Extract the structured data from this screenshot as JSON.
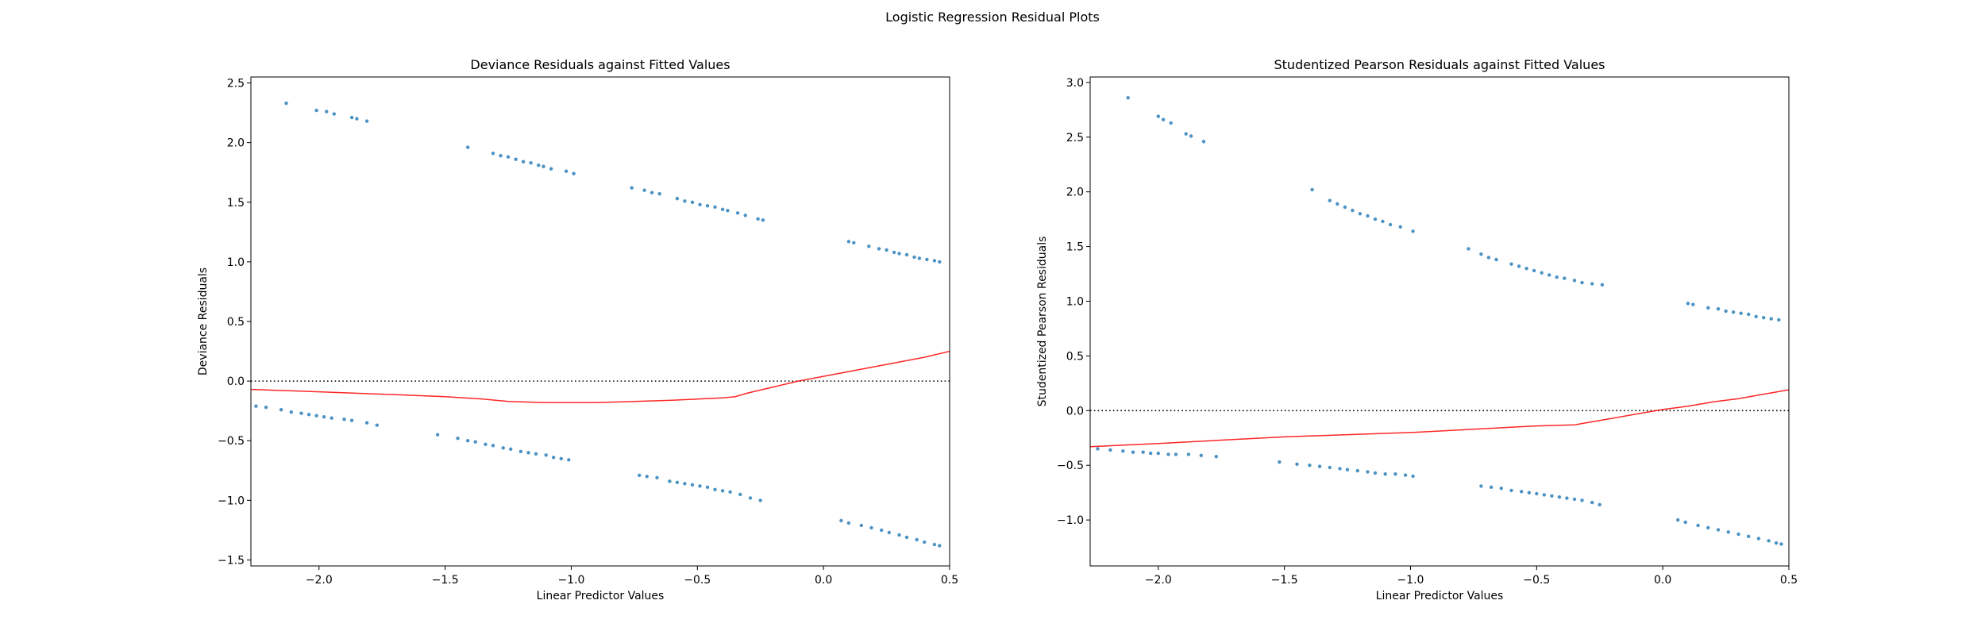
{
  "figure": {
    "suptitle": "Logistic Regression Residual Plots"
  },
  "colors": {
    "points": "#1f77b4",
    "smoother": "#ff0000",
    "zero_line": "#000000"
  },
  "chart_data": [
    {
      "type": "scatter",
      "title": "Deviance Residuals against Fitted Values",
      "xlabel": "Linear Predictor Values",
      "ylabel": "Deviance Residuals",
      "xlim": [
        -2.27,
        0.5
      ],
      "ylim": [
        -1.55,
        2.55
      ],
      "xticks": [
        -2.0,
        -1.5,
        -1.0,
        -0.5,
        0.0,
        0.5
      ],
      "xtick_labels": [
        "−2.0",
        "−1.5",
        "−1.0",
        "−0.5",
        "0.0",
        "0.5"
      ],
      "yticks": [
        -1.5,
        -1.0,
        -0.5,
        0.0,
        0.5,
        1.0,
        1.5,
        2.0,
        2.5
      ],
      "ytick_labels": [
        "−1.5",
        "−1.0",
        "−0.5",
        "0.0",
        "0.5",
        "1.0",
        "1.5",
        "2.0",
        "2.5"
      ],
      "zero_line": 0,
      "grid": false,
      "segments": [
        {
          "x": [
            -2.13,
            -2.01,
            -1.97,
            -1.94,
            -1.87,
            -1.85,
            -1.81
          ],
          "y": [
            2.33,
            2.27,
            2.26,
            2.24,
            2.21,
            2.2,
            2.18
          ]
        },
        {
          "x": [
            -1.41,
            -1.31,
            -1.28,
            -1.25,
            -1.22,
            -1.19,
            -1.16,
            -1.13,
            -1.11,
            -1.08,
            -1.02,
            -0.99
          ],
          "y": [
            1.96,
            1.91,
            1.89,
            1.88,
            1.86,
            1.84,
            1.83,
            1.81,
            1.8,
            1.78,
            1.76,
            1.74
          ]
        },
        {
          "x": [
            -0.76,
            -0.71,
            -0.68,
            -0.65,
            -0.58,
            -0.55,
            -0.52,
            -0.49,
            -0.46,
            -0.43,
            -0.4,
            -0.38,
            -0.34,
            -0.31,
            -0.26,
            -0.24
          ],
          "y": [
            1.62,
            1.6,
            1.58,
            1.57,
            1.53,
            1.51,
            1.5,
            1.48,
            1.47,
            1.46,
            1.44,
            1.43,
            1.41,
            1.39,
            1.36,
            1.35
          ]
        },
        {
          "x": [
            0.1,
            0.12,
            0.18,
            0.22,
            0.25,
            0.28,
            0.3,
            0.33,
            0.36,
            0.38,
            0.41,
            0.44,
            0.46
          ],
          "y": [
            1.17,
            1.16,
            1.13,
            1.11,
            1.1,
            1.08,
            1.07,
            1.06,
            1.04,
            1.03,
            1.02,
            1.01,
            1.0
          ]
        },
        {
          "x": [
            -2.25,
            -2.21,
            -2.15,
            -2.11,
            -2.07,
            -2.04,
            -2.01,
            -1.98,
            -1.95,
            -1.9,
            -1.87,
            -1.81,
            -1.77
          ],
          "y": [
            -0.21,
            -0.22,
            -0.24,
            -0.26,
            -0.27,
            -0.28,
            -0.29,
            -0.3,
            -0.31,
            -0.32,
            -0.33,
            -0.35,
            -0.37
          ]
        },
        {
          "x": [
            -1.53,
            -1.45,
            -1.41,
            -1.38,
            -1.34,
            -1.31,
            -1.27,
            -1.24,
            -1.2,
            -1.17,
            -1.14,
            -1.1,
            -1.07,
            -1.04,
            -1.01
          ],
          "y": [
            -0.45,
            -0.48,
            -0.5,
            -0.51,
            -0.53,
            -0.54,
            -0.56,
            -0.57,
            -0.59,
            -0.6,
            -0.61,
            -0.62,
            -0.64,
            -0.65,
            -0.66
          ]
        },
        {
          "x": [
            -0.73,
            -0.7,
            -0.66,
            -0.61,
            -0.58,
            -0.55,
            -0.52,
            -0.49,
            -0.46,
            -0.43,
            -0.4,
            -0.37,
            -0.33,
            -0.29,
            -0.25
          ],
          "y": [
            -0.79,
            -0.8,
            -0.81,
            -0.84,
            -0.85,
            -0.86,
            -0.87,
            -0.88,
            -0.89,
            -0.91,
            -0.92,
            -0.93,
            -0.95,
            -0.98,
            -1.0
          ]
        },
        {
          "x": [
            0.07,
            0.1,
            0.15,
            0.19,
            0.23,
            0.26,
            0.3,
            0.33,
            0.37,
            0.4,
            0.44,
            0.46
          ],
          "y": [
            -1.17,
            -1.19,
            -1.21,
            -1.23,
            -1.25,
            -1.27,
            -1.29,
            -1.31,
            -1.33,
            -1.35,
            -1.37,
            -1.38
          ]
        }
      ],
      "smoother": {
        "x": [
          -2.27,
          -2.0,
          -1.75,
          -1.5,
          -1.35,
          -1.25,
          -1.1,
          -1.0,
          -0.9,
          -0.75,
          -0.6,
          -0.5,
          -0.4,
          -0.35,
          -0.3,
          -0.2,
          -0.1,
          0.0,
          0.1,
          0.2,
          0.3,
          0.4,
          0.5
        ],
        "y": [
          -0.07,
          -0.09,
          -0.11,
          -0.13,
          -0.15,
          -0.17,
          -0.18,
          -0.18,
          -0.18,
          -0.17,
          -0.16,
          -0.15,
          -0.14,
          -0.13,
          -0.1,
          -0.05,
          0.0,
          0.04,
          0.08,
          0.12,
          0.16,
          0.2,
          0.25
        ]
      }
    },
    {
      "type": "scatter",
      "title": "Studentized Pearson Residuals against Fitted Values",
      "xlabel": "Linear Predictor Values",
      "ylabel": "Studentized Pearson Residuals",
      "xlim": [
        -2.27,
        0.5
      ],
      "ylim": [
        -1.42,
        3.05
      ],
      "xticks": [
        -2.0,
        -1.5,
        -1.0,
        -0.5,
        0.0,
        0.5
      ],
      "xtick_labels": [
        "−2.0",
        "−1.5",
        "−1.0",
        "−0.5",
        "0.0",
        "0.5"
      ],
      "yticks": [
        -1.0,
        -0.5,
        0.0,
        0.5,
        1.0,
        1.5,
        2.0,
        2.5,
        3.0
      ],
      "ytick_labels": [
        "−1.0",
        "−0.5",
        "0.0",
        "0.5",
        "1.0",
        "1.5",
        "2.0",
        "2.5",
        "3.0"
      ],
      "zero_line": 0,
      "grid": false,
      "segments": [
        {
          "x": [
            -2.12,
            -2.0,
            -1.98,
            -1.95,
            -1.89,
            -1.87,
            -1.82
          ],
          "y": [
            2.86,
            2.69,
            2.66,
            2.63,
            2.53,
            2.51,
            2.46
          ]
        },
        {
          "x": [
            -1.39,
            -1.32,
            -1.29,
            -1.26,
            -1.23,
            -1.2,
            -1.17,
            -1.14,
            -1.11,
            -1.08,
            -1.04,
            -0.99
          ],
          "y": [
            2.02,
            1.92,
            1.89,
            1.86,
            1.83,
            1.8,
            1.78,
            1.75,
            1.73,
            1.7,
            1.68,
            1.64
          ]
        },
        {
          "x": [
            -0.77,
            -0.72,
            -0.69,
            -0.66,
            -0.6,
            -0.57,
            -0.54,
            -0.51,
            -0.48,
            -0.45,
            -0.42,
            -0.39,
            -0.35,
            -0.32,
            -0.28,
            -0.24
          ],
          "y": [
            1.48,
            1.43,
            1.4,
            1.38,
            1.34,
            1.32,
            1.3,
            1.28,
            1.26,
            1.24,
            1.22,
            1.21,
            1.19,
            1.17,
            1.16,
            1.15
          ]
        },
        {
          "x": [
            0.1,
            0.12,
            0.18,
            0.22,
            0.25,
            0.28,
            0.31,
            0.34,
            0.37,
            0.4,
            0.43,
            0.46
          ],
          "y": [
            0.98,
            0.97,
            0.94,
            0.93,
            0.91,
            0.9,
            0.89,
            0.88,
            0.86,
            0.85,
            0.84,
            0.83
          ]
        },
        {
          "x": [
            -2.24,
            -2.19,
            -2.14,
            -2.1,
            -2.06,
            -2.03,
            -2.0,
            -1.96,
            -1.93,
            -1.88,
            -1.83,
            -1.77
          ],
          "y": [
            -0.35,
            -0.36,
            -0.37,
            -0.38,
            -0.38,
            -0.39,
            -0.39,
            -0.4,
            -0.4,
            -0.4,
            -0.41,
            -0.42
          ]
        },
        {
          "x": [
            -1.52,
            -1.45,
            -1.4,
            -1.36,
            -1.32,
            -1.28,
            -1.25,
            -1.21,
            -1.17,
            -1.14,
            -1.1,
            -1.06,
            -1.02,
            -0.99
          ],
          "y": [
            -0.47,
            -0.49,
            -0.5,
            -0.51,
            -0.52,
            -0.53,
            -0.54,
            -0.55,
            -0.56,
            -0.57,
            -0.58,
            -0.58,
            -0.59,
            -0.6
          ]
        },
        {
          "x": [
            -0.72,
            -0.68,
            -0.64,
            -0.6,
            -0.56,
            -0.53,
            -0.5,
            -0.47,
            -0.44,
            -0.41,
            -0.38,
            -0.35,
            -0.32,
            -0.28,
            -0.25
          ],
          "y": [
            -0.69,
            -0.7,
            -0.71,
            -0.73,
            -0.74,
            -0.75,
            -0.76,
            -0.77,
            -0.78,
            -0.79,
            -0.8,
            -0.81,
            -0.82,
            -0.84,
            -0.86
          ]
        },
        {
          "x": [
            0.06,
            0.09,
            0.14,
            0.18,
            0.22,
            0.26,
            0.3,
            0.34,
            0.38,
            0.42,
            0.45,
            0.47
          ],
          "y": [
            -1.0,
            -1.02,
            -1.05,
            -1.07,
            -1.09,
            -1.11,
            -1.13,
            -1.15,
            -1.17,
            -1.19,
            -1.21,
            -1.22
          ]
        }
      ],
      "smoother": {
        "x": [
          -2.27,
          -2.0,
          -1.75,
          -1.5,
          -1.25,
          -1.0,
          -0.75,
          -0.5,
          -0.35,
          -0.3,
          -0.2,
          -0.1,
          0.0,
          0.1,
          0.2,
          0.3,
          0.4,
          0.5
        ],
        "y": [
          -0.33,
          -0.3,
          -0.27,
          -0.24,
          -0.22,
          -0.2,
          -0.17,
          -0.14,
          -0.13,
          -0.11,
          -0.07,
          -0.03,
          0.01,
          0.04,
          0.08,
          0.11,
          0.15,
          0.19
        ]
      }
    }
  ]
}
